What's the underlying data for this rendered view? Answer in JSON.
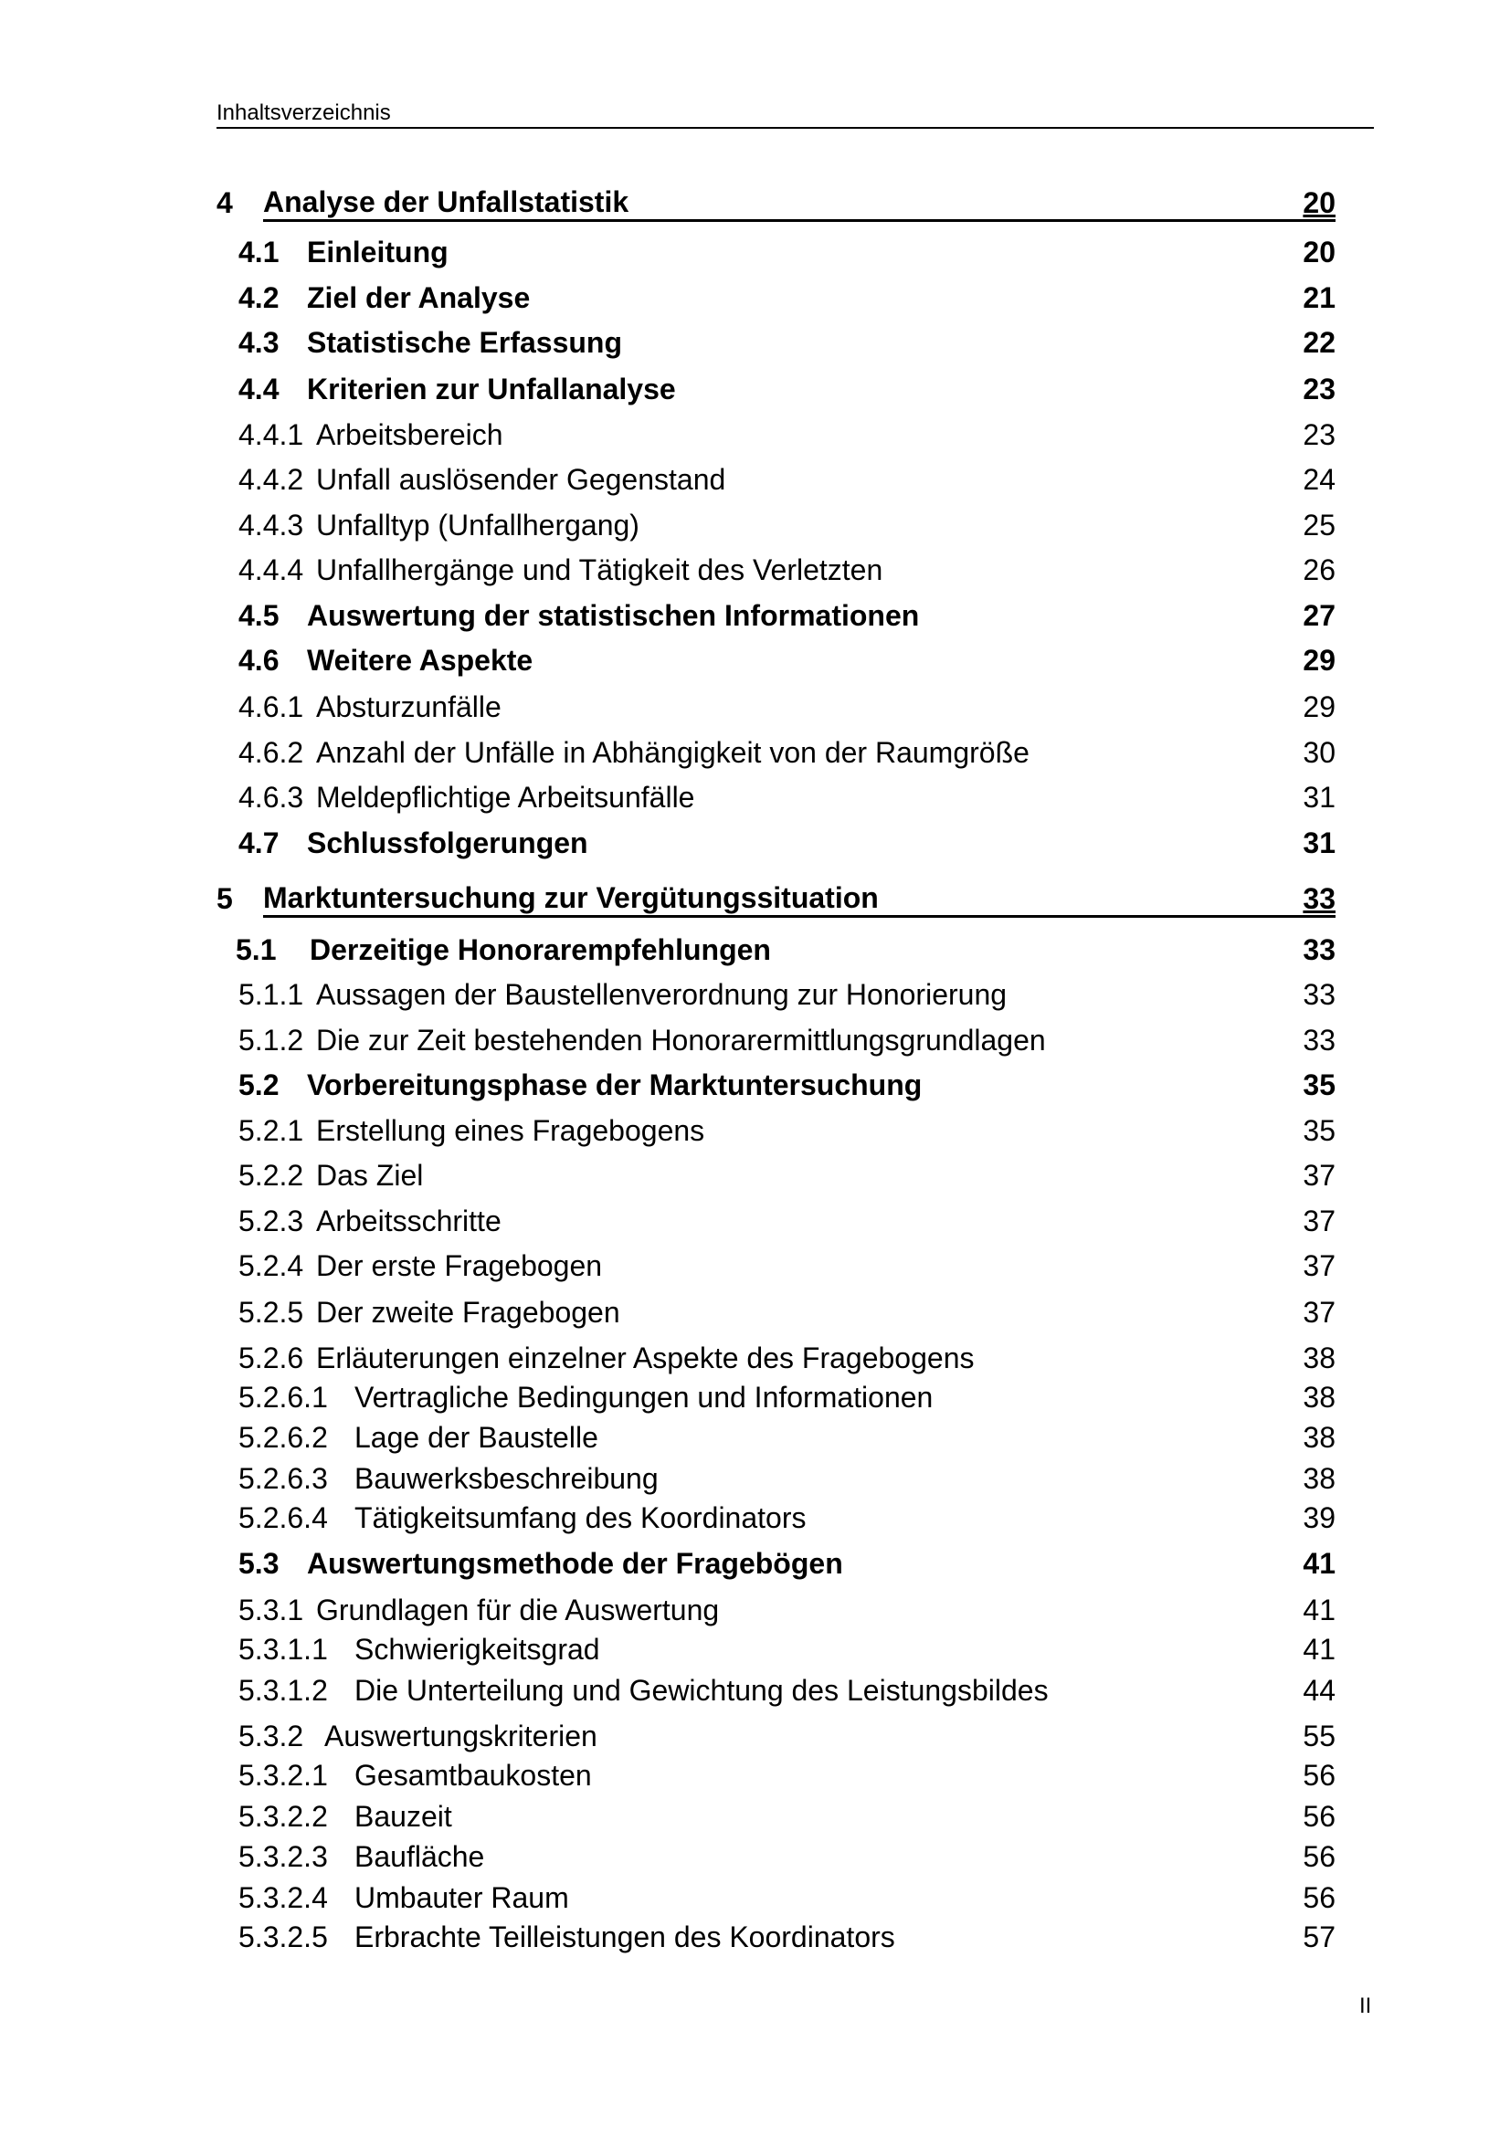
{
  "header": {
    "title": "Inhaltsverzeichnis"
  },
  "page_number": "II",
  "entries": [
    {
      "level": "chapter",
      "num": "4",
      "title": "Analyse der Unfallstatistik",
      "page": "20"
    },
    {
      "level": "section",
      "num": "4.1",
      "title": "Einleitung",
      "page": "20"
    },
    {
      "level": "section",
      "num": "4.2",
      "title": "Ziel der Analyse",
      "page": "21"
    },
    {
      "level": "section",
      "num": "4.3",
      "title": "Statistische Erfassung",
      "page": "22"
    },
    {
      "level": "section",
      "num": "4.4",
      "title": "Kriterien zur Unfallanalyse",
      "page": "23"
    },
    {
      "level": "sub",
      "num": "4.4.1",
      "title": "Arbeitsbereich",
      "page": "23"
    },
    {
      "level": "sub",
      "num": "4.4.2",
      "title": "Unfall auslösender Gegenstand",
      "page": "24"
    },
    {
      "level": "sub",
      "num": "4.4.3",
      "title": "Unfalltyp (Unfallhergang)",
      "page": "25"
    },
    {
      "level": "sub",
      "num": "4.4.4",
      "title": "Unfallhergänge und Tätigkeit des Verletzten",
      "page": "26"
    },
    {
      "level": "section",
      "num": "4.5",
      "title": "Auswertung der statistischen Informationen",
      "page": "27"
    },
    {
      "level": "section",
      "num": "4.6",
      "title": "Weitere Aspekte",
      "page": "29"
    },
    {
      "level": "sub",
      "num": "4.6.1",
      "title": "Absturzunfälle",
      "page": "29"
    },
    {
      "level": "sub",
      "num": "4.6.2",
      "title": "Anzahl der Unfälle in Abhängigkeit von der Raumgröße",
      "page": "30"
    },
    {
      "level": "sub",
      "num": "4.6.3",
      "title": "Meldepflichtige Arbeitsunfälle",
      "page": "31"
    },
    {
      "level": "section",
      "num": "4.7",
      "title": "Schlussfolgerungen",
      "page": "31"
    },
    {
      "level": "chapter",
      "num": "5",
      "title": "Marktuntersuchung zur Vergütungssituation",
      "page": "33"
    },
    {
      "level": "section",
      "num": "5.1",
      "title": "Derzeitige Honorarempfehlungen",
      "page": "33"
    },
    {
      "level": "sub",
      "num": "5.1.1",
      "title": "Aussagen der Baustellenverordnung zur Honorierung",
      "page": "33"
    },
    {
      "level": "sub",
      "num": "5.1.2",
      "title": "Die zur Zeit bestehenden Honorarermittlungsgrundlagen",
      "page": "33"
    },
    {
      "level": "section",
      "num": "5.2",
      "title": "Vorbereitungsphase der Marktuntersuchung",
      "page": "35"
    },
    {
      "level": "sub",
      "num": "5.2.1",
      "title": "Erstellung eines Fragebogens",
      "page": "35"
    },
    {
      "level": "sub",
      "num": "5.2.2",
      "title": "Das Ziel",
      "page": "37"
    },
    {
      "level": "sub",
      "num": "5.2.3",
      "title": "Arbeitsschritte",
      "page": "37"
    },
    {
      "level": "sub",
      "num": "5.2.4",
      "title": "Der erste Fragebogen",
      "page": "37"
    },
    {
      "level": "sub",
      "num": "5.2.5",
      "title": "Der zweite Fragebogen",
      "page": "37"
    },
    {
      "level": "sub",
      "num": "5.2.6",
      "title": "Erläuterungen einzelner Aspekte des Fragebogens",
      "page": "38"
    },
    {
      "level": "subsub",
      "num": "5.2.6.1",
      "title": "Vertragliche Bedingungen und Informationen",
      "page": "38"
    },
    {
      "level": "subsub",
      "num": "5.2.6.2",
      "title": "Lage der Baustelle",
      "page": "38"
    },
    {
      "level": "subsub",
      "num": "5.2.6.3",
      "title": "Bauwerksbeschreibung",
      "page": "38"
    },
    {
      "level": "subsub",
      "num": "5.2.6.4",
      "title": "Tätigkeitsumfang des Koordinators",
      "page": "39"
    },
    {
      "level": "section",
      "num": "5.3",
      "title": "Auswertungsmethode der Fragebögen",
      "page": "41"
    },
    {
      "level": "sub",
      "num": "5.3.1",
      "title": "Grundlagen für die Auswertung",
      "page": "41"
    },
    {
      "level": "subsub",
      "num": "5.3.1.1",
      "title": "Schwierigkeitsgrad",
      "page": "41"
    },
    {
      "level": "subsub",
      "num": "5.3.1.2",
      "title": "Die Unterteilung und Gewichtung des Leistungsbildes",
      "page": "44"
    },
    {
      "level": "sub2",
      "num": "5.3.2",
      "title": "Auswertungskriterien",
      "page": "55"
    },
    {
      "level": "subsub",
      "num": "5.3.2.1",
      "title": "Gesamtbaukosten",
      "page": "56"
    },
    {
      "level": "subsub",
      "num": "5.3.2.2",
      "title": "Bauzeit",
      "page": "56"
    },
    {
      "level": "subsub",
      "num": "5.3.2.3",
      "title": "Baufläche",
      "page": "56"
    },
    {
      "level": "subsub",
      "num": "5.3.2.4",
      "title": "Umbauter Raum",
      "page": "56"
    },
    {
      "level": "subsub",
      "num": "5.3.2.5",
      "title": "Erbrachte Teilleistungen des Koordinators",
      "page": "57"
    }
  ]
}
